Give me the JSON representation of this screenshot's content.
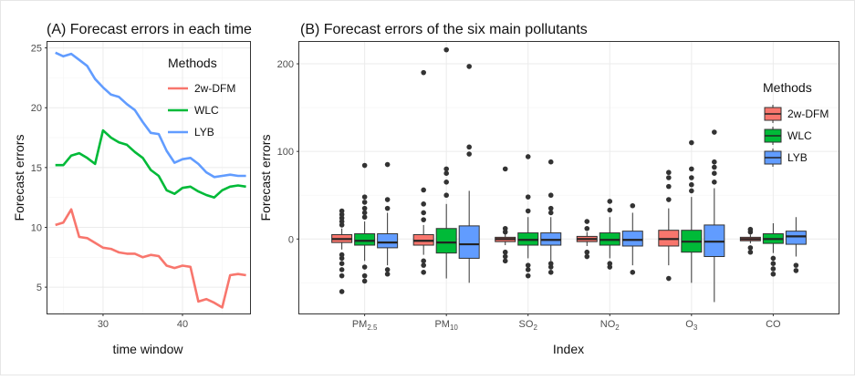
{
  "colors": {
    "2w-DFM": "#f8766d",
    "WLC": "#00ba38",
    "LYB": "#619cff"
  },
  "chart_data": [
    {
      "type": "line",
      "title": "(A) Forecast errors in each time w",
      "xlabel": "time window",
      "ylabel": "Forecast errors",
      "xlim": [
        23,
        48.5
      ],
      "ylim": [
        2.8,
        25.5
      ],
      "xticks": [
        30,
        40
      ],
      "yticks": [
        5,
        10,
        15,
        20,
        25
      ],
      "legend_title": "Methods",
      "legend_position": "top-right",
      "grid": true,
      "x": [
        24,
        25,
        26,
        27,
        28,
        29,
        30,
        31,
        32,
        33,
        34,
        35,
        36,
        37,
        38,
        39,
        40,
        41,
        42,
        43,
        44,
        45,
        46,
        47,
        48
      ],
      "series": [
        {
          "name": "2w-DFM",
          "values": [
            10.2,
            10.4,
            11.5,
            9.2,
            9.1,
            8.7,
            8.3,
            8.2,
            7.9,
            7.8,
            7.8,
            7.5,
            7.7,
            7.6,
            6.8,
            6.6,
            6.8,
            6.7,
            3.8,
            4.0,
            3.7,
            3.3,
            6.0,
            6.1,
            6.0
          ]
        },
        {
          "name": "WLC",
          "values": [
            15.2,
            15.2,
            16.0,
            16.2,
            15.8,
            15.3,
            18.1,
            17.5,
            17.1,
            16.9,
            16.3,
            15.8,
            14.8,
            14.3,
            13.1,
            12.8,
            13.3,
            13.4,
            13.0,
            12.7,
            12.5,
            13.1,
            13.4,
            13.5,
            13.4
          ]
        },
        {
          "name": "LYB",
          "values": [
            24.6,
            24.3,
            24.5,
            24.0,
            23.5,
            22.4,
            21.7,
            21.1,
            20.9,
            20.3,
            19.8,
            18.8,
            17.9,
            17.8,
            16.4,
            15.4,
            15.7,
            15.8,
            15.3,
            14.6,
            14.2,
            14.3,
            14.4,
            14.3,
            14.3
          ]
        }
      ]
    },
    {
      "type": "box",
      "title": "(B) Forecast errors of the six main pollutants",
      "xlabel": "Index",
      "ylabel": "Forecast errors",
      "ylim": [
        -85,
        225
      ],
      "yticks": [
        0,
        100,
        200
      ],
      "legend_title": "Methods",
      "legend_position": "top-right",
      "grid": true,
      "categories": [
        "PM2.5",
        "PM10",
        "SO2",
        "NO2",
        "O3",
        "CO"
      ],
      "category_labels": [
        {
          "base": "PM",
          "sub": "2.5"
        },
        {
          "base": "PM",
          "sub": "10"
        },
        {
          "base": "SO",
          "sub": "2"
        },
        {
          "base": "NO",
          "sub": "2"
        },
        {
          "base": "O",
          "sub": "3"
        },
        {
          "base": "CO",
          "sub": ""
        }
      ],
      "series": [
        {
          "name": "2w-DFM",
          "boxes": [
            {
              "q1": -4,
              "median": 0,
              "q3": 5,
              "whisker_low": -12,
              "whisker_high": 12,
              "outliers": [
                -60,
                -42,
                -35,
                -28,
                -22,
                -18,
                16,
                20,
                24,
                28,
                32
              ]
            },
            {
              "q1": -7,
              "median": -2,
              "q3": 5,
              "whisker_low": -18,
              "whisker_high": 16,
              "outliers": [
                -38,
                -30,
                -25,
                22,
                30,
                40,
                56,
                190
              ]
            },
            {
              "q1": -3,
              "median": 0,
              "q3": 2,
              "whisker_low": -7,
              "whisker_high": 6,
              "outliers": [
                -25,
                -20,
                -15,
                8,
                12,
                80
              ]
            },
            {
              "q1": -3,
              "median": 0,
              "q3": 3,
              "whisker_low": -8,
              "whisker_high": 8,
              "outliers": [
                -20,
                -15,
                12,
                20
              ]
            },
            {
              "q1": -8,
              "median": 0,
              "q3": 10,
              "whisker_low": -30,
              "whisker_high": 35,
              "outliers": [
                -45,
                45,
                60,
                70,
                76
              ]
            },
            {
              "q1": -2,
              "median": 0,
              "q3": 2,
              "whisker_low": -5,
              "whisker_high": 5,
              "outliers": [
                -15,
                -10,
                8,
                11
              ]
            }
          ]
        },
        {
          "name": "WLC",
          "boxes": [
            {
              "q1": -7,
              "median": -2,
              "q3": 6,
              "whisker_low": -25,
              "whisker_high": 20,
              "outliers": [
                -48,
                -42,
                -32,
                25,
                30,
                35,
                42,
                48,
                84
              ]
            },
            {
              "q1": -16,
              "median": -4,
              "q3": 12,
              "whisker_low": -45,
              "whisker_high": 40,
              "outliers": [
                50,
                65,
                75,
                80,
                216
              ]
            },
            {
              "q1": -7,
              "median": -1,
              "q3": 7,
              "whisker_low": -22,
              "whisker_high": 25,
              "outliers": [
                -42,
                -35,
                -30,
                32,
                48,
                94
              ]
            },
            {
              "q1": -7,
              "median": -1,
              "q3": 7,
              "whisker_low": -22,
              "whisker_high": 25,
              "outliers": [
                -32,
                -28,
                33,
                43
              ]
            },
            {
              "q1": -15,
              "median": -3,
              "q3": 10,
              "whisker_low": -50,
              "whisker_high": 48,
              "outliers": [
                55,
                62,
                70,
                80,
                110
              ]
            },
            {
              "q1": -5,
              "median": 0,
              "q3": 6,
              "whisker_low": -16,
              "whisker_high": 18,
              "outliers": [
                -40,
                -34,
                -28,
                -22
              ]
            }
          ]
        },
        {
          "name": "LYB",
          "boxes": [
            {
              "q1": -10,
              "median": -4,
              "q3": 6,
              "whisker_low": -30,
              "whisker_high": 30,
              "outliers": [
                -40,
                -35,
                35,
                45,
                85
              ]
            },
            {
              "q1": -22,
              "median": -6,
              "q3": 15,
              "whisker_low": -50,
              "whisker_high": 55,
              "outliers": [
                97,
                105,
                197
              ]
            },
            {
              "q1": -7,
              "median": -1,
              "q3": 7,
              "whisker_low": -25,
              "whisker_high": 25,
              "outliers": [
                -38,
                -32,
                -28,
                30,
                35,
                50,
                88
              ]
            },
            {
              "q1": -8,
              "median": -1,
              "q3": 9,
              "whisker_low": -30,
              "whisker_high": 30,
              "outliers": [
                -38,
                38
              ]
            },
            {
              "q1": -20,
              "median": -3,
              "q3": 16,
              "whisker_low": -72,
              "whisker_high": 58,
              "outliers": [
                65,
                75,
                82,
                88,
                122
              ]
            },
            {
              "q1": -6,
              "median": 3,
              "q3": 9,
              "whisker_low": -20,
              "whisker_high": 25,
              "outliers": [
                -36,
                -30
              ]
            }
          ]
        }
      ]
    }
  ]
}
